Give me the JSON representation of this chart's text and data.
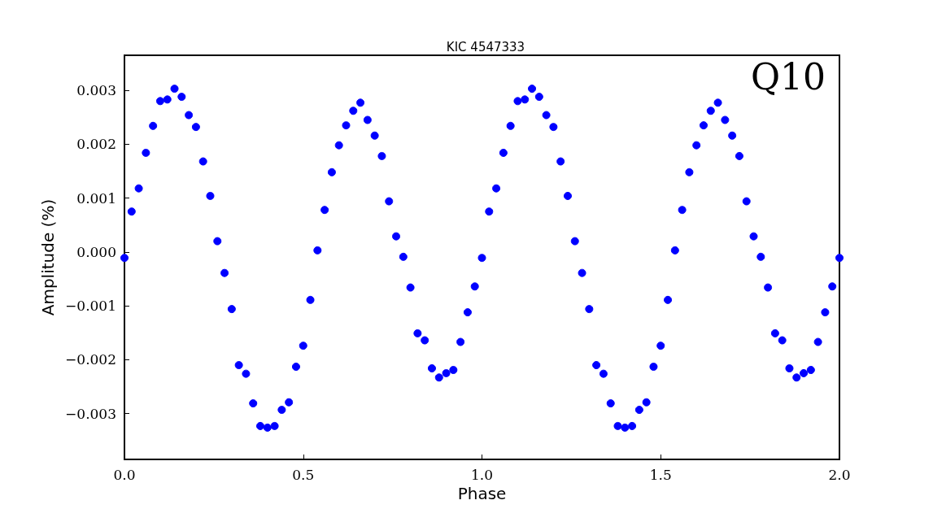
{
  "chart_data": {
    "type": "scatter",
    "title": "KIC 4547333",
    "xlabel": "Phase",
    "ylabel": "Amplitude (%)",
    "annotations": [
      "Q10"
    ],
    "x": [
      0,
      0.02,
      0.04,
      0.06,
      0.08,
      0.1,
      0.12,
      0.14,
      0.16,
      0.18,
      0.2,
      0.22,
      0.24,
      0.26,
      0.28,
      0.3,
      0.32,
      0.34,
      0.36,
      0.38,
      0.4,
      0.42,
      0.44,
      0.46,
      0.48,
      0.5,
      0.52,
      0.54,
      0.56,
      0.58,
      0.6,
      0.62,
      0.64,
      0.66,
      0.68,
      0.7,
      0.72,
      0.74,
      0.76,
      0.78,
      0.8,
      0.82,
      0.84,
      0.86,
      0.88,
      0.9,
      0.92,
      0.94,
      0.96,
      0.98,
      1,
      1.02,
      1.04,
      1.06,
      1.08,
      1.1,
      1.12,
      1.14,
      1.16,
      1.18,
      1.2,
      1.22,
      1.24,
      1.26,
      1.28,
      1.3,
      1.32,
      1.34,
      1.36,
      1.38,
      1.4,
      1.42,
      1.44,
      1.46,
      1.48,
      1.5,
      1.52,
      1.54,
      1.56,
      1.58,
      1.6,
      1.62,
      1.64,
      1.66,
      1.68,
      1.7,
      1.72,
      1.74,
      1.76,
      1.78,
      1.8,
      1.82,
      1.84,
      1.86,
      1.88,
      1.9,
      1.92,
      1.94,
      1.96,
      1.98,
      2
    ],
    "series": [
      {
        "color": "#0000ff",
        "values": [
          -0.00011,
          0.00075,
          0.00118,
          0.00184,
          0.00234,
          0.0028,
          0.00283,
          0.00303,
          0.00288,
          0.00254,
          0.00232,
          0.00168,
          0.00104,
          0.0002,
          -0.00039,
          -0.00106,
          -0.0021,
          -0.00226,
          -0.00281,
          -0.00323,
          -0.00326,
          -0.00323,
          -0.00293,
          -0.00279,
          -0.00213,
          -0.00174,
          -0.00089,
          3e-05,
          0.00078,
          0.00148,
          0.00198,
          0.00235,
          0.00262,
          0.00277,
          0.00245,
          0.00216,
          0.00178,
          0.00094,
          0.00029,
          -9e-05,
          -0.00066,
          -0.00151,
          -0.00164,
          -0.00216,
          -0.00233,
          -0.00225,
          -0.00219,
          -0.00167,
          -0.00112,
          -0.00064,
          -0.00011,
          0.00075,
          0.00118,
          0.00184,
          0.00234,
          0.0028,
          0.00283,
          0.00303,
          0.00288,
          0.00254,
          0.00232,
          0.00168,
          0.00104,
          0.0002,
          -0.00039,
          -0.00106,
          -0.0021,
          -0.00226,
          -0.00281,
          -0.00323,
          -0.00326,
          -0.00323,
          -0.00293,
          -0.00279,
          -0.00213,
          -0.00174,
          -0.00089,
          3e-05,
          0.00078,
          0.00148,
          0.00198,
          0.00235,
          0.00262,
          0.00277,
          0.00245,
          0.00216,
          0.00178,
          0.00094,
          0.00029,
          -9e-05,
          -0.00066,
          -0.00151,
          -0.00164,
          -0.00216,
          -0.00233,
          -0.00225,
          -0.00219,
          -0.00167,
          -0.00112,
          -0.00064,
          -0.00011
        ]
      }
    ],
    "xlim": [
      0,
      2
    ],
    "xticks": [
      {
        "value": 0,
        "label": "0.0"
      },
      {
        "value": 0.5,
        "label": "0.5"
      },
      {
        "value": 1,
        "label": "1.0"
      },
      {
        "value": 1.5,
        "label": "1.5"
      },
      {
        "value": 2,
        "label": "2.0"
      }
    ],
    "ylim": [
      -0.00385,
      0.00365
    ],
    "yticks": [
      {
        "value": -0.003,
        "label": "−0.003"
      },
      {
        "value": -0.002,
        "label": "−0.002"
      },
      {
        "value": -0.001,
        "label": "−0.001"
      },
      {
        "value": 0,
        "label": "0.000"
      },
      {
        "value": 0.001,
        "label": "0.001"
      },
      {
        "value": 0.002,
        "label": "0.002"
      },
      {
        "value": 0.003,
        "label": "0.003"
      }
    ],
    "grid": false,
    "marker": "circle"
  }
}
